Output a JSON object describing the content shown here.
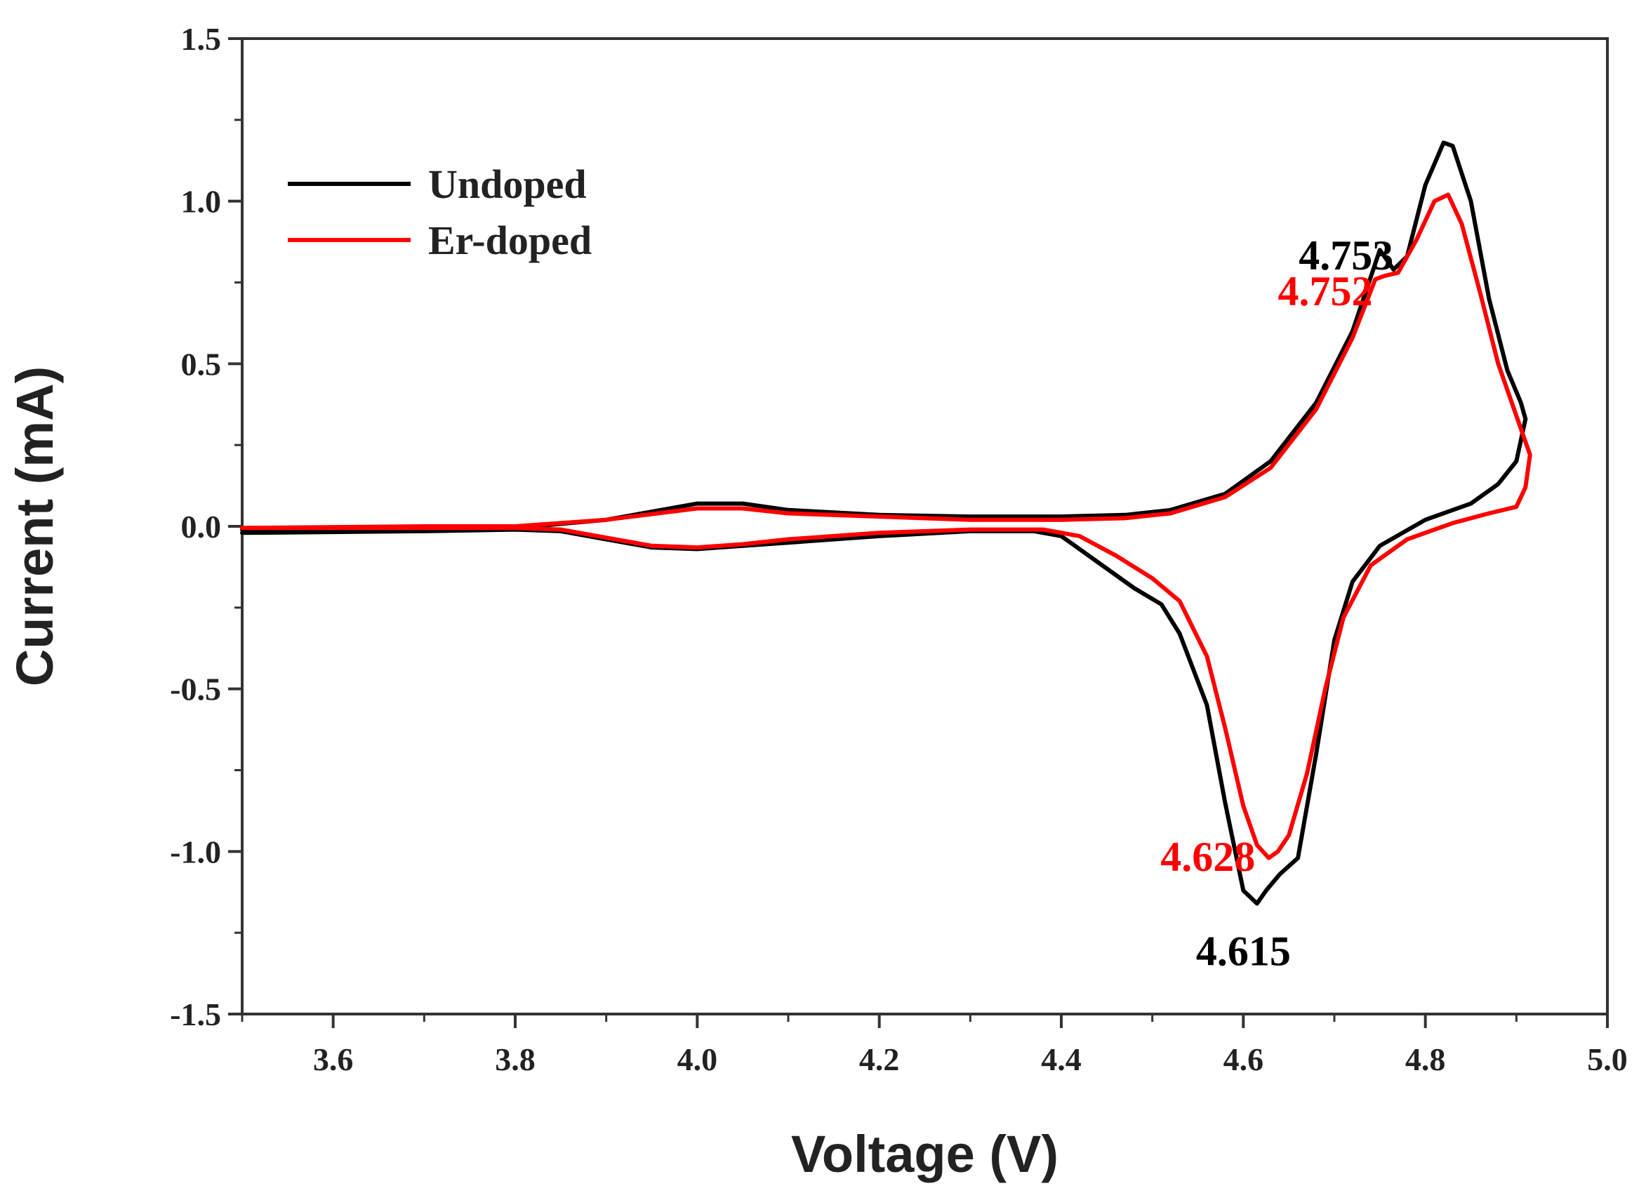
{
  "chart_data": {
    "type": "line",
    "title": "",
    "xlabel": "Voltage (V)",
    "ylabel": "Current (mA)",
    "xlim": [
      3.5,
      5.0
    ],
    "ylim": [
      -1.5,
      1.5
    ],
    "xticks": [
      3.6,
      3.8,
      4.0,
      4.2,
      4.4,
      4.6,
      4.8,
      5.0
    ],
    "xtick_labels": [
      "3.6",
      "3.8",
      "4.0",
      "4.2",
      "4.4",
      "4.6",
      "4.8",
      "5.0"
    ],
    "yticks": [
      1.5,
      1.0,
      0.5,
      0.0,
      -0.5,
      -1.0,
      -1.5
    ],
    "ytick_labels": [
      "1.5",
      "1.0",
      "0.5",
      "0.0",
      "-0.5",
      "-1.0",
      "-1.5"
    ],
    "grid": false,
    "legend_position": "top-left",
    "series": [
      {
        "name": "Undoped",
        "color": "#000000",
        "points": [
          [
            3.5,
            -0.01
          ],
          [
            3.7,
            -0.01
          ],
          [
            3.8,
            -0.005
          ],
          [
            3.9,
            0.02
          ],
          [
            4.0,
            0.07
          ],
          [
            4.05,
            0.07
          ],
          [
            4.1,
            0.05
          ],
          [
            4.2,
            0.035
          ],
          [
            4.3,
            0.03
          ],
          [
            4.4,
            0.03
          ],
          [
            4.47,
            0.035
          ],
          [
            4.52,
            0.05
          ],
          [
            4.58,
            0.1
          ],
          [
            4.63,
            0.2
          ],
          [
            4.68,
            0.38
          ],
          [
            4.72,
            0.6
          ],
          [
            4.75,
            0.85
          ],
          [
            4.765,
            0.79
          ],
          [
            4.78,
            0.83
          ],
          [
            4.8,
            1.05
          ],
          [
            4.82,
            1.18
          ],
          [
            4.83,
            1.17
          ],
          [
            4.85,
            1.0
          ],
          [
            4.87,
            0.7
          ],
          [
            4.89,
            0.48
          ],
          [
            4.905,
            0.38
          ],
          [
            4.91,
            0.33
          ],
          [
            4.9,
            0.2
          ],
          [
            4.88,
            0.13
          ],
          [
            4.85,
            0.07
          ],
          [
            4.8,
            0.02
          ],
          [
            4.75,
            -0.06
          ],
          [
            4.72,
            -0.17
          ],
          [
            4.7,
            -0.35
          ],
          [
            4.68,
            -0.7
          ],
          [
            4.66,
            -1.02
          ],
          [
            4.64,
            -1.07
          ],
          [
            4.625,
            -1.12
          ],
          [
            4.615,
            -1.16
          ],
          [
            4.6,
            -1.12
          ],
          [
            4.58,
            -0.85
          ],
          [
            4.56,
            -0.55
          ],
          [
            4.53,
            -0.33
          ],
          [
            4.51,
            -0.24
          ],
          [
            4.48,
            -0.19
          ],
          [
            4.44,
            -0.11
          ],
          [
            4.4,
            -0.03
          ],
          [
            4.37,
            -0.015
          ],
          [
            4.3,
            -0.015
          ],
          [
            4.2,
            -0.03
          ],
          [
            4.1,
            -0.05
          ],
          [
            4.05,
            -0.06
          ],
          [
            4.0,
            -0.07
          ],
          [
            3.95,
            -0.065
          ],
          [
            3.9,
            -0.04
          ],
          [
            3.85,
            -0.015
          ],
          [
            3.8,
            -0.01
          ],
          [
            3.7,
            -0.015
          ],
          [
            3.5,
            -0.02
          ]
        ]
      },
      {
        "name": "Er-doped",
        "color": "#ff0000",
        "points": [
          [
            3.5,
            -0.005
          ],
          [
            3.7,
            0.0
          ],
          [
            3.8,
            0.0
          ],
          [
            3.9,
            0.02
          ],
          [
            4.0,
            0.055
          ],
          [
            4.05,
            0.055
          ],
          [
            4.1,
            0.04
          ],
          [
            4.2,
            0.03
          ],
          [
            4.3,
            0.02
          ],
          [
            4.4,
            0.02
          ],
          [
            4.47,
            0.025
          ],
          [
            4.52,
            0.04
          ],
          [
            4.58,
            0.09
          ],
          [
            4.63,
            0.18
          ],
          [
            4.68,
            0.36
          ],
          [
            4.72,
            0.58
          ],
          [
            4.745,
            0.76
          ],
          [
            4.755,
            0.77
          ],
          [
            4.77,
            0.78
          ],
          [
            4.79,
            0.88
          ],
          [
            4.81,
            1.0
          ],
          [
            4.825,
            1.02
          ],
          [
            4.84,
            0.93
          ],
          [
            4.86,
            0.72
          ],
          [
            4.88,
            0.5
          ],
          [
            4.9,
            0.34
          ],
          [
            4.915,
            0.22
          ],
          [
            4.91,
            0.12
          ],
          [
            4.9,
            0.06
          ],
          [
            4.87,
            0.04
          ],
          [
            4.83,
            0.01
          ],
          [
            4.78,
            -0.04
          ],
          [
            4.74,
            -0.12
          ],
          [
            4.71,
            -0.28
          ],
          [
            4.69,
            -0.5
          ],
          [
            4.67,
            -0.76
          ],
          [
            4.65,
            -0.95
          ],
          [
            4.638,
            -1.0
          ],
          [
            4.628,
            -1.02
          ],
          [
            4.615,
            -0.98
          ],
          [
            4.6,
            -0.86
          ],
          [
            4.58,
            -0.62
          ],
          [
            4.56,
            -0.4
          ],
          [
            4.53,
            -0.23
          ],
          [
            4.5,
            -0.16
          ],
          [
            4.46,
            -0.09
          ],
          [
            4.42,
            -0.03
          ],
          [
            4.38,
            -0.01
          ],
          [
            4.3,
            -0.01
          ],
          [
            4.2,
            -0.02
          ],
          [
            4.1,
            -0.04
          ],
          [
            4.05,
            -0.055
          ],
          [
            4.0,
            -0.065
          ],
          [
            3.95,
            -0.06
          ],
          [
            3.9,
            -0.035
          ],
          [
            3.85,
            -0.01
          ],
          [
            3.8,
            -0.005
          ],
          [
            3.7,
            -0.005
          ],
          [
            3.5,
            -0.005
          ]
        ]
      }
    ],
    "annotations": [
      {
        "text": "4.753",
        "x": 4.753,
        "y": 0.85,
        "color": "#000000",
        "anchor": "end",
        "dy": -0.06,
        "dx": 0.012
      },
      {
        "text": "4.752",
        "x": 4.752,
        "y": 0.76,
        "color": "#ff0000",
        "anchor": "end",
        "dy": -0.08,
        "dx": -0.01
      },
      {
        "text": "4.628",
        "x": 4.628,
        "y": -1.02,
        "color": "#ff0000",
        "anchor": "end",
        "dy": -0.04,
        "dx": -0.015
      },
      {
        "text": "4.615",
        "x": 4.615,
        "y": -1.16,
        "color": "#000000",
        "anchor": "middle",
        "dy": -0.19,
        "dx": -0.015
      }
    ]
  }
}
